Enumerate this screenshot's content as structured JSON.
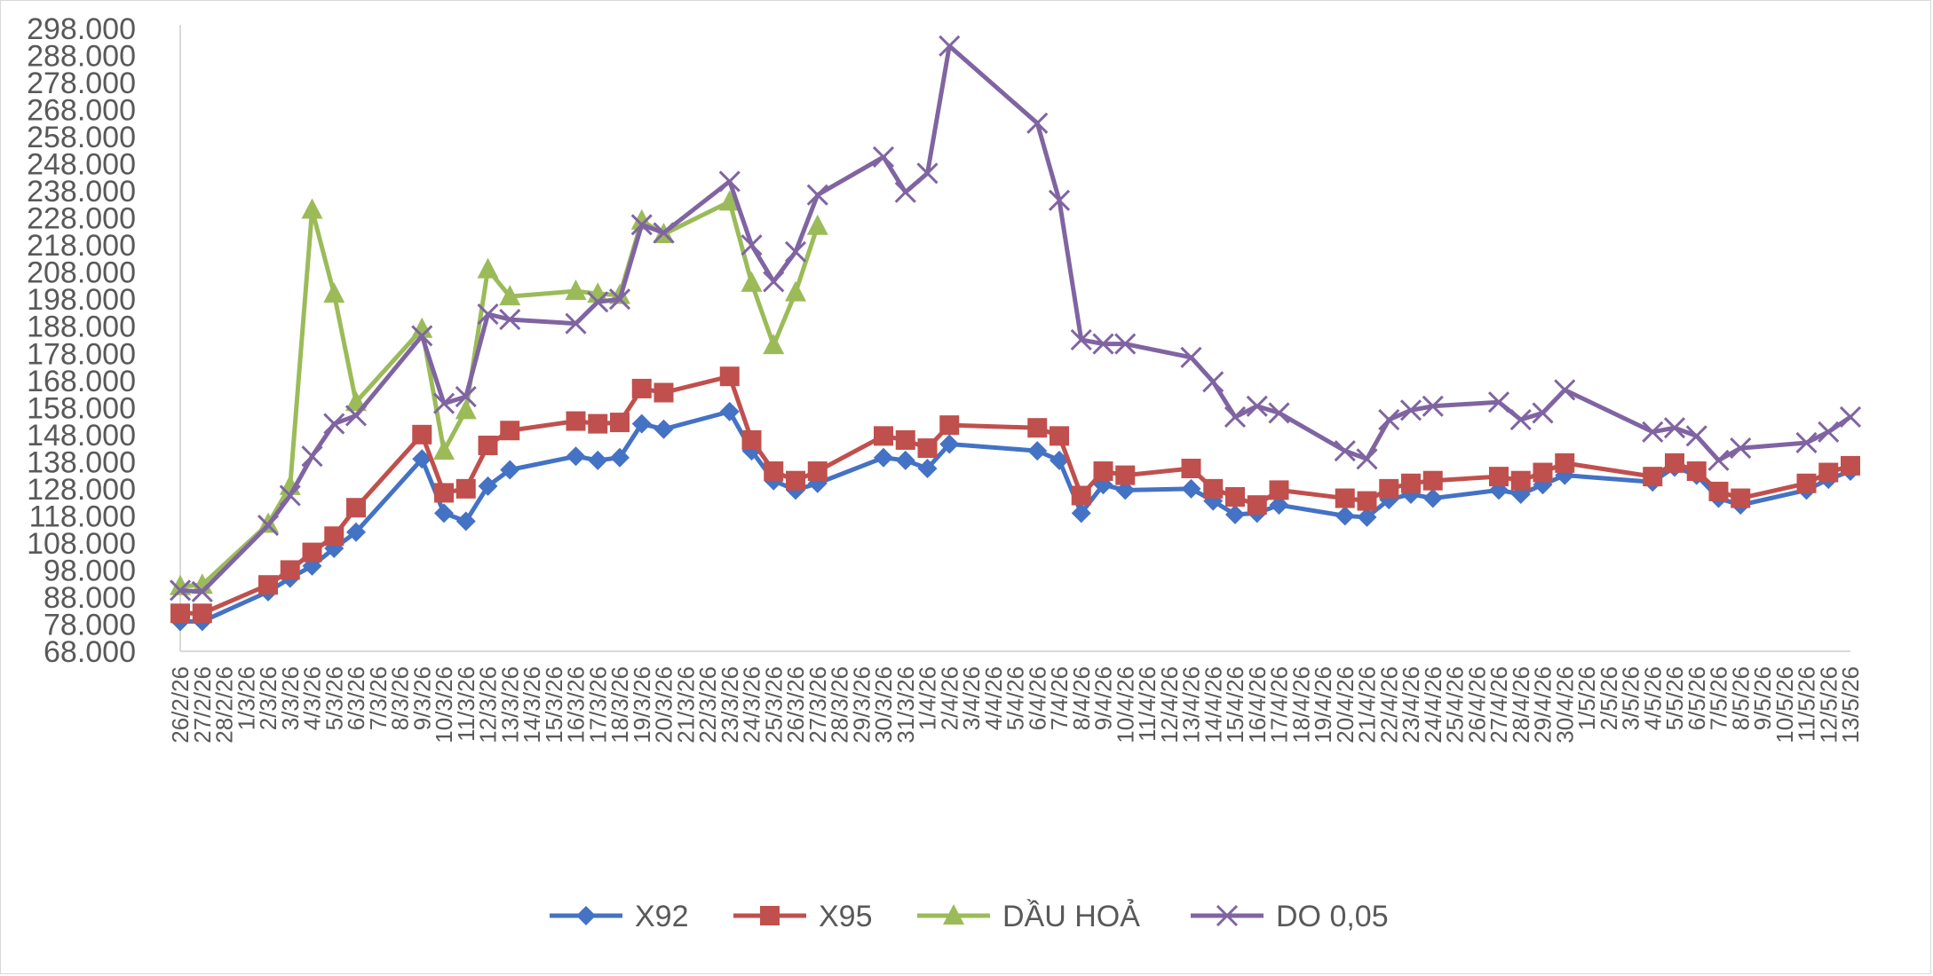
{
  "chart_data": {
    "type": "line",
    "title": "",
    "xlabel": "",
    "ylabel": "",
    "ylim": [
      68000,
      298000
    ],
    "y_tick_step": 10000,
    "grid": false,
    "legend_placement": "bottom",
    "x_tick_labels": [
      "26/2/26",
      "27/2/26",
      "28/2/26",
      "1/3/26",
      "2/3/26",
      "3/3/26",
      "4/3/26",
      "5/3/26",
      "6/3/26",
      "7/3/26",
      "8/3/26",
      "9/3/26",
      "10/3/26",
      "11/3/26",
      "12/3/26",
      "13/3/26",
      "14/3/26",
      "15/3/26",
      "16/3/26",
      "17/3/26",
      "18/3/26",
      "19/3/26",
      "20/3/26",
      "21/3/26",
      "22/3/26",
      "23/3/26",
      "24/3/26",
      "25/3/26",
      "26/3/26",
      "27/3/26",
      "28/3/26",
      "29/3/26",
      "30/3/26",
      "31/3/26",
      "1/4/26",
      "2/4/26",
      "3/4/26",
      "4/4/26",
      "5/4/26",
      "6/4/26",
      "7/4/26",
      "8/4/26",
      "9/4/26",
      "10/4/26",
      "11/4/26",
      "12/4/26",
      "13/4/26",
      "14/4/26",
      "15/4/26",
      "16/4/26",
      "17/4/26",
      "18/4/26",
      "19/4/26",
      "20/4/26",
      "21/4/26",
      "22/4/26",
      "23/4/26",
      "24/4/26",
      "25/4/26",
      "26/4/26",
      "27/4/26",
      "28/4/26",
      "29/4/26",
      "30/4/26",
      "1/5/26",
      "2/5/26",
      "3/5/26",
      "4/5/26",
      "5/5/26",
      "6/5/26",
      "7/5/26",
      "8/5/26",
      "9/5/26",
      "10/5/26",
      "11/5/26",
      "12/5/26",
      "13/5/26"
    ],
    "series": [
      {
        "name": "X92",
        "color": "#4472c4",
        "marker": "diamond",
        "points": [
          [
            "26/2/26",
            79000
          ],
          [
            "27/2/26",
            79000
          ],
          [
            "2/3/26",
            90000
          ],
          [
            "3/3/26",
            95000
          ],
          [
            "4/3/26",
            99500
          ],
          [
            "5/3/26",
            106000
          ],
          [
            "6/3/26",
            112000
          ],
          [
            "9/3/26",
            139000
          ],
          [
            "10/3/26",
            119000
          ],
          [
            "11/3/26",
            116000
          ],
          [
            "12/3/26",
            129000
          ],
          [
            "13/3/26",
            135000
          ],
          [
            "16/3/26",
            140000
          ],
          [
            "17/3/26",
            138500
          ],
          [
            "18/3/26",
            139500
          ],
          [
            "19/3/26",
            152000
          ],
          [
            "20/3/26",
            150000
          ],
          [
            "23/3/26",
            156500
          ],
          [
            "24/3/26",
            142000
          ],
          [
            "25/3/26",
            131000
          ],
          [
            "26/3/26",
            127500
          ],
          [
            "27/3/26",
            130000
          ],
          [
            "30/3/26",
            139500
          ],
          [
            "31/3/26",
            138500
          ],
          [
            "1/4/26",
            135500
          ],
          [
            "2/4/26",
            144500
          ],
          [
            "6/4/26",
            142000
          ],
          [
            "7/4/26",
            138500
          ],
          [
            "8/4/26",
            119000
          ],
          [
            "9/4/26",
            129500
          ],
          [
            "10/4/26",
            127500
          ],
          [
            "13/4/26",
            128000
          ],
          [
            "14/4/26",
            123500
          ],
          [
            "15/4/26",
            118500
          ],
          [
            "16/4/26",
            119000
          ],
          [
            "17/4/26",
            122000
          ],
          [
            "20/4/26",
            118000
          ],
          [
            "21/4/26",
            117500
          ],
          [
            "22/4/26",
            124000
          ],
          [
            "23/4/26",
            126000
          ],
          [
            "24/4/26",
            124500
          ],
          [
            "27/4/26",
            127500
          ],
          [
            "28/4/26",
            126000
          ],
          [
            "29/4/26",
            129500
          ],
          [
            "30/4/26",
            133000
          ],
          [
            "4/5/26",
            130500
          ],
          [
            "5/5/26",
            136000
          ],
          [
            "6/5/26",
            133000
          ],
          [
            "7/5/26",
            124500
          ],
          [
            "8/5/26",
            122000
          ],
          [
            "11/5/26",
            127500
          ],
          [
            "12/5/26",
            131500
          ],
          [
            "13/5/26",
            134500
          ]
        ]
      },
      {
        "name": "X95",
        "color": "#c0504d",
        "marker": "square",
        "points": [
          [
            "26/2/26",
            82000
          ],
          [
            "27/2/26",
            82000
          ],
          [
            "2/3/26",
            92500
          ],
          [
            "3/3/26",
            98000
          ],
          [
            "4/3/26",
            104500
          ],
          [
            "5/3/26",
            110500
          ],
          [
            "6/3/26",
            121000
          ],
          [
            "9/3/26",
            148000
          ],
          [
            "10/3/26",
            126500
          ],
          [
            "11/3/26",
            128000
          ],
          [
            "12/3/26",
            144000
          ],
          [
            "13/3/26",
            149500
          ],
          [
            "16/3/26",
            153000
          ],
          [
            "17/3/26",
            152000
          ],
          [
            "18/3/26",
            152500
          ],
          [
            "19/3/26",
            165000
          ],
          [
            "20/3/26",
            163500
          ],
          [
            "23/3/26",
            169500
          ],
          [
            "24/3/26",
            146000
          ],
          [
            "25/3/26",
            134500
          ],
          [
            "26/3/26",
            131000
          ],
          [
            "27/3/26",
            134500
          ],
          [
            "30/3/26",
            147500
          ],
          [
            "31/3/26",
            146000
          ],
          [
            "1/4/26",
            143000
          ],
          [
            "2/4/26",
            151500
          ],
          [
            "6/4/26",
            150500
          ],
          [
            "7/4/26",
            147500
          ],
          [
            "8/4/26",
            125500
          ],
          [
            "9/4/26",
            134500
          ],
          [
            "10/4/26",
            133000
          ],
          [
            "13/4/26",
            135500
          ],
          [
            "14/4/26",
            128000
          ],
          [
            "15/4/26",
            125000
          ],
          [
            "16/4/26",
            122000
          ],
          [
            "17/4/26",
            127500
          ],
          [
            "20/4/26",
            124500
          ],
          [
            "21/4/26",
            123500
          ],
          [
            "22/4/26",
            128000
          ],
          [
            "23/4/26",
            130000
          ],
          [
            "24/4/26",
            131000
          ],
          [
            "27/4/26",
            132500
          ],
          [
            "28/4/26",
            131000
          ],
          [
            "29/4/26",
            134000
          ],
          [
            "30/4/26",
            137500
          ],
          [
            "4/5/26",
            132500
          ],
          [
            "5/5/26",
            137500
          ],
          [
            "6/5/26",
            134500
          ],
          [
            "7/5/26",
            127000
          ],
          [
            "8/5/26",
            124500
          ],
          [
            "11/5/26",
            130000
          ],
          [
            "12/5/26",
            134000
          ],
          [
            "13/5/26",
            136500
          ]
        ]
      },
      {
        "name": "DẦU HOẢ",
        "color": "#9bbb59",
        "marker": "triangle",
        "points": [
          [
            "26/2/26",
            92000
          ],
          [
            "27/2/26",
            92500
          ],
          [
            "2/3/26",
            115000
          ],
          [
            "3/3/26",
            129000
          ],
          [
            "4/3/26",
            231000
          ],
          [
            "5/3/26",
            200000
          ],
          [
            "6/3/26",
            160000
          ],
          [
            "9/3/26",
            187000
          ],
          [
            "10/3/26",
            142000
          ],
          [
            "11/3/26",
            157000
          ],
          [
            "12/3/26",
            209000
          ],
          [
            "13/3/26",
            199000
          ],
          [
            "16/3/26",
            201000
          ],
          [
            "17/3/26",
            200000
          ],
          [
            "18/3/26",
            199500
          ],
          [
            "19/3/26",
            227000
          ],
          [
            "20/3/26",
            222000
          ],
          [
            "23/3/26",
            234000
          ],
          [
            "24/3/26",
            204000
          ],
          [
            "25/3/26",
            181000
          ],
          [
            "26/3/26",
            200500
          ],
          [
            "27/3/26",
            225000
          ]
        ]
      },
      {
        "name": "DO 0,05",
        "color": "#8064a2",
        "marker": "x",
        "points": [
          [
            "26/2/26",
            90500
          ],
          [
            "27/2/26",
            90000
          ],
          [
            "2/3/26",
            114500
          ],
          [
            "3/3/26",
            125500
          ],
          [
            "4/3/26",
            140000
          ],
          [
            "5/3/26",
            152000
          ],
          [
            "6/3/26",
            155000
          ],
          [
            "9/3/26",
            184500
          ],
          [
            "10/3/26",
            159500
          ],
          [
            "11/3/26",
            162000
          ],
          [
            "12/3/26",
            192500
          ],
          [
            "13/3/26",
            190500
          ],
          [
            "16/3/26",
            189000
          ],
          [
            "17/3/26",
            197000
          ],
          [
            "18/3/26",
            198000
          ],
          [
            "19/3/26",
            225500
          ],
          [
            "20/3/26",
            222500
          ],
          [
            "23/3/26",
            241500
          ],
          [
            "24/3/26",
            218000
          ],
          [
            "25/3/26",
            204500
          ],
          [
            "26/3/26",
            215500
          ],
          [
            "27/3/26",
            236500
          ],
          [
            "30/3/26",
            250500
          ],
          [
            "31/3/26",
            237500
          ],
          [
            "1/4/26",
            244500
          ],
          [
            "2/4/26",
            291500
          ],
          [
            "6/4/26",
            263000
          ],
          [
            "7/4/26",
            234500
          ],
          [
            "8/4/26",
            183000
          ],
          [
            "9/4/26",
            181500
          ],
          [
            "10/4/26",
            181500
          ],
          [
            "13/4/26",
            176500
          ],
          [
            "14/4/26",
            167500
          ],
          [
            "15/4/26",
            154500
          ],
          [
            "16/4/26",
            158500
          ],
          [
            "17/4/26",
            156000
          ],
          [
            "20/4/26",
            142000
          ],
          [
            "21/4/26",
            139000
          ],
          [
            "22/4/26",
            153500
          ],
          [
            "23/4/26",
            157000
          ],
          [
            "24/4/26",
            158500
          ],
          [
            "27/4/26",
            160000
          ],
          [
            "28/4/26",
            153500
          ],
          [
            "29/4/26",
            156000
          ],
          [
            "30/4/26",
            164500
          ],
          [
            "4/5/26",
            149000
          ],
          [
            "5/5/26",
            150500
          ],
          [
            "6/5/26",
            147500
          ],
          [
            "7/5/26",
            138500
          ],
          [
            "8/5/26",
            143000
          ],
          [
            "11/5/26",
            145000
          ],
          [
            "12/5/26",
            149000
          ],
          [
            "13/5/26",
            154500
          ]
        ]
      }
    ]
  }
}
